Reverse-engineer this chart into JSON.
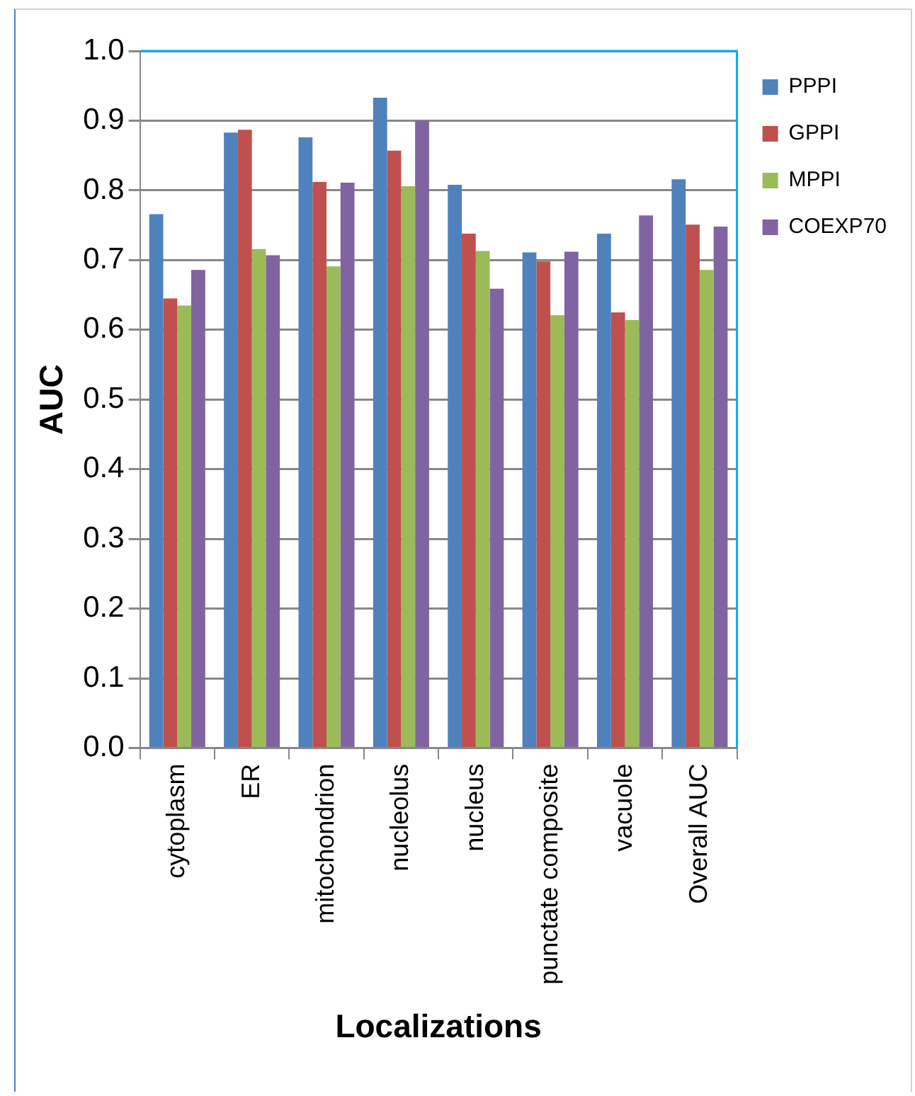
{
  "chart_data": {
    "type": "bar",
    "xlabel": "Localizations",
    "ylabel": "AUC",
    "categories": [
      "cytoplasm",
      "ER",
      "mitochondrion",
      "nucleolus",
      "nucleus",
      "punctate composite",
      "vacuole",
      "Overall AUC"
    ],
    "series": [
      {
        "name": "PPPI",
        "color": "#4f81bd",
        "values": [
          0.766,
          0.883,
          0.876,
          0.933,
          0.808,
          0.711,
          0.738,
          0.816
        ]
      },
      {
        "name": "GPPI",
        "color": "#c0504d",
        "values": [
          0.645,
          0.887,
          0.812,
          0.857,
          0.738,
          0.698,
          0.625,
          0.751
        ]
      },
      {
        "name": "MPPI",
        "color": "#9bbb59",
        "values": [
          0.635,
          0.716,
          0.691,
          0.806,
          0.713,
          0.621,
          0.614,
          0.686
        ]
      },
      {
        "name": "COEXP70",
        "color": "#8064a2",
        "values": [
          0.686,
          0.707,
          0.811,
          0.9,
          0.659,
          0.712,
          0.764,
          0.748
        ]
      }
    ],
    "ylim": [
      0,
      1
    ],
    "yticks": [
      {
        "value": 0,
        "label": "0.0"
      },
      {
        "value": 0.1,
        "label": "0.1"
      },
      {
        "value": 0.2,
        "label": "0.2"
      },
      {
        "value": 0.3,
        "label": "0.3"
      },
      {
        "value": 0.4,
        "label": "0.4"
      },
      {
        "value": 0.5,
        "label": "0.5"
      },
      {
        "value": 0.6,
        "label": "0.6"
      },
      {
        "value": 0.7,
        "label": "0.7"
      },
      {
        "value": 0.8,
        "label": "0.8"
      },
      {
        "value": 0.9,
        "label": "0.9"
      },
      {
        "value": 1,
        "label": "1.0"
      }
    ],
    "grid": "y",
    "legend": "right"
  }
}
